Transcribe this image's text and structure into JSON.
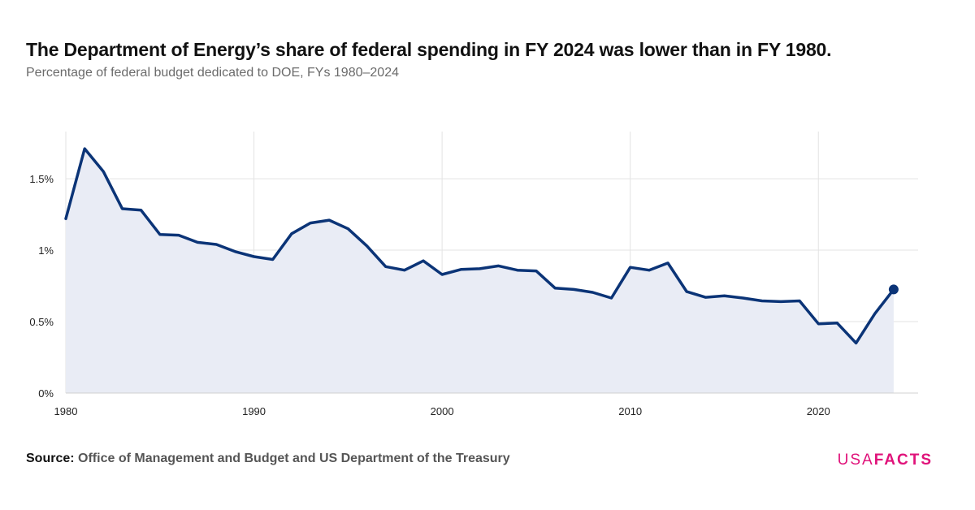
{
  "header": {
    "title": "The Department of Energy’s share of federal spending in FY 2024 was lower than in FY 1980.",
    "subtitle": "Percentage of federal budget dedicated to DOE, FYs 1980–2024"
  },
  "footer": {
    "source_label": "Source:",
    "source_text": "Office of Management and Budget and US Department of the Treasury"
  },
  "logo": {
    "usa": "USA",
    "facts": "FACTS"
  },
  "colors": {
    "line": "#0b3477",
    "area": "#e9ecf5",
    "grid": "#e3e3e3",
    "logo": "#e0127a"
  },
  "chart_data": {
    "type": "area",
    "title": "",
    "xlabel": "",
    "ylabel": "",
    "xlim": [
      1980,
      2025.3
    ],
    "ylim": [
      0,
      1.83
    ],
    "x_ticks": [
      1980,
      1990,
      2000,
      2010,
      2020
    ],
    "y_ticks": [
      {
        "value": 0,
        "label": "0%"
      },
      {
        "value": 0.5,
        "label": "0.5%"
      },
      {
        "value": 1.0,
        "label": "1%"
      },
      {
        "value": 1.5,
        "label": "1.5%"
      }
    ],
    "grid": true,
    "legend": "none",
    "series": [
      {
        "x": [
          1980,
          1981,
          1982,
          1983,
          1984,
          1985,
          1986,
          1987,
          1988,
          1989,
          1990,
          1991,
          1992,
          1993,
          1994,
          1995,
          1996,
          1997,
          1998,
          1999,
          2000,
          2001,
          2002,
          2003,
          2004,
          2005,
          2006,
          2007,
          2008,
          2009,
          2010,
          2011,
          2012,
          2013,
          2014,
          2015,
          2016,
          2017,
          2018,
          2019,
          2020,
          2021,
          2022,
          2023,
          2024
        ],
        "values": [
          1.22,
          1.71,
          1.55,
          1.29,
          1.28,
          1.11,
          1.105,
          1.055,
          1.04,
          0.99,
          0.955,
          0.935,
          1.115,
          1.19,
          1.21,
          1.15,
          1.03,
          0.885,
          0.86,
          0.925,
          0.83,
          0.865,
          0.87,
          0.89,
          0.86,
          0.855,
          0.735,
          0.725,
          0.705,
          0.665,
          0.88,
          0.86,
          0.91,
          0.71,
          0.67,
          0.68,
          0.665,
          0.645,
          0.64,
          0.645,
          0.485,
          0.49,
          0.35,
          0.555,
          0.725
        ]
      }
    ]
  }
}
